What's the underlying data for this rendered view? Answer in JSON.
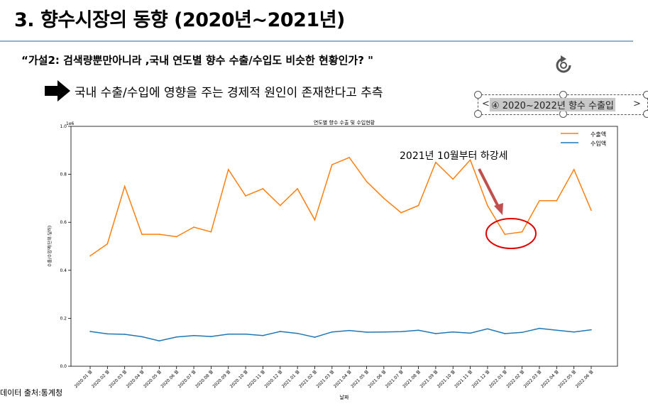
{
  "slide": {
    "title": "3. 향수시장의 동향 (2020년~2021년)",
    "hypothesis": "“가설2: 검색량뿐만아니라 ,국내 연도별 향수 수출/수입도 비슷한 현황인가? \"",
    "conclusion": "국내 수출/수입에 영향을 주는 경제적 원인이 존재한다고 추측",
    "caption": "④ 2020~2022년 향수 수출입",
    "caption_left": "<",
    "caption_right": ">",
    "source": "데이터 출처:통계청",
    "annotation": "2021년 10월부터 하강세"
  },
  "colors": {
    "export": "#ff7f0e",
    "import": "#1f77b4",
    "title_rule": "#8fb2c9",
    "arrow": "#c0504d",
    "circle": "#e00000"
  },
  "chart_data": {
    "type": "line",
    "title": "연도별 향수 수출 및 수입현황",
    "xlabel": "날짜",
    "ylabel": "수출/수입액(단위:달러)",
    "y_scale_label": "1e6",
    "ylim": [
      0,
      1.0
    ],
    "yticks": [
      "0.0",
      "0.2",
      "0.4",
      "0.6",
      "0.8",
      "1.0"
    ],
    "legend_position": "top-right",
    "grid": false,
    "x": [
      "2020.01 월",
      "2020.02 월",
      "2020.03 월",
      "2020.04 월",
      "2020.05 월",
      "2020.06 월",
      "2020.07 월",
      "2020.08 월",
      "2020.09 월",
      "2020.10 월",
      "2020.11 월",
      "2020.12 월",
      "2021.01 월",
      "2021.02 월",
      "2021.03 월",
      "2021.04 월",
      "2021.05 월",
      "2021.06 월",
      "2021.07 월",
      "2021.08 월",
      "2021.09 월",
      "2021.10 월",
      "2021.11 월",
      "2021.12 월",
      "2022.01 월",
      "2022.02 월",
      "2022.03 월",
      "2022.04 월",
      "2022.05 월",
      "2022.06 월"
    ],
    "series": [
      {
        "name": "수출액",
        "values": [
          0.46,
          0.51,
          0.75,
          0.55,
          0.55,
          0.54,
          0.58,
          0.56,
          0.82,
          0.71,
          0.74,
          0.67,
          0.74,
          0.61,
          0.84,
          0.87,
          0.77,
          0.7,
          0.64,
          0.67,
          0.85,
          0.78,
          0.86,
          0.67,
          0.55,
          0.56,
          0.69,
          0.69,
          0.82,
          0.65
        ]
      },
      {
        "name": "수입액",
        "values": [
          0.145,
          0.135,
          0.133,
          0.123,
          0.106,
          0.122,
          0.128,
          0.124,
          0.134,
          0.134,
          0.128,
          0.145,
          0.137,
          0.121,
          0.143,
          0.149,
          0.142,
          0.143,
          0.144,
          0.15,
          0.136,
          0.143,
          0.138,
          0.156,
          0.136,
          0.141,
          0.158,
          0.15,
          0.143,
          0.152
        ]
      }
    ]
  }
}
